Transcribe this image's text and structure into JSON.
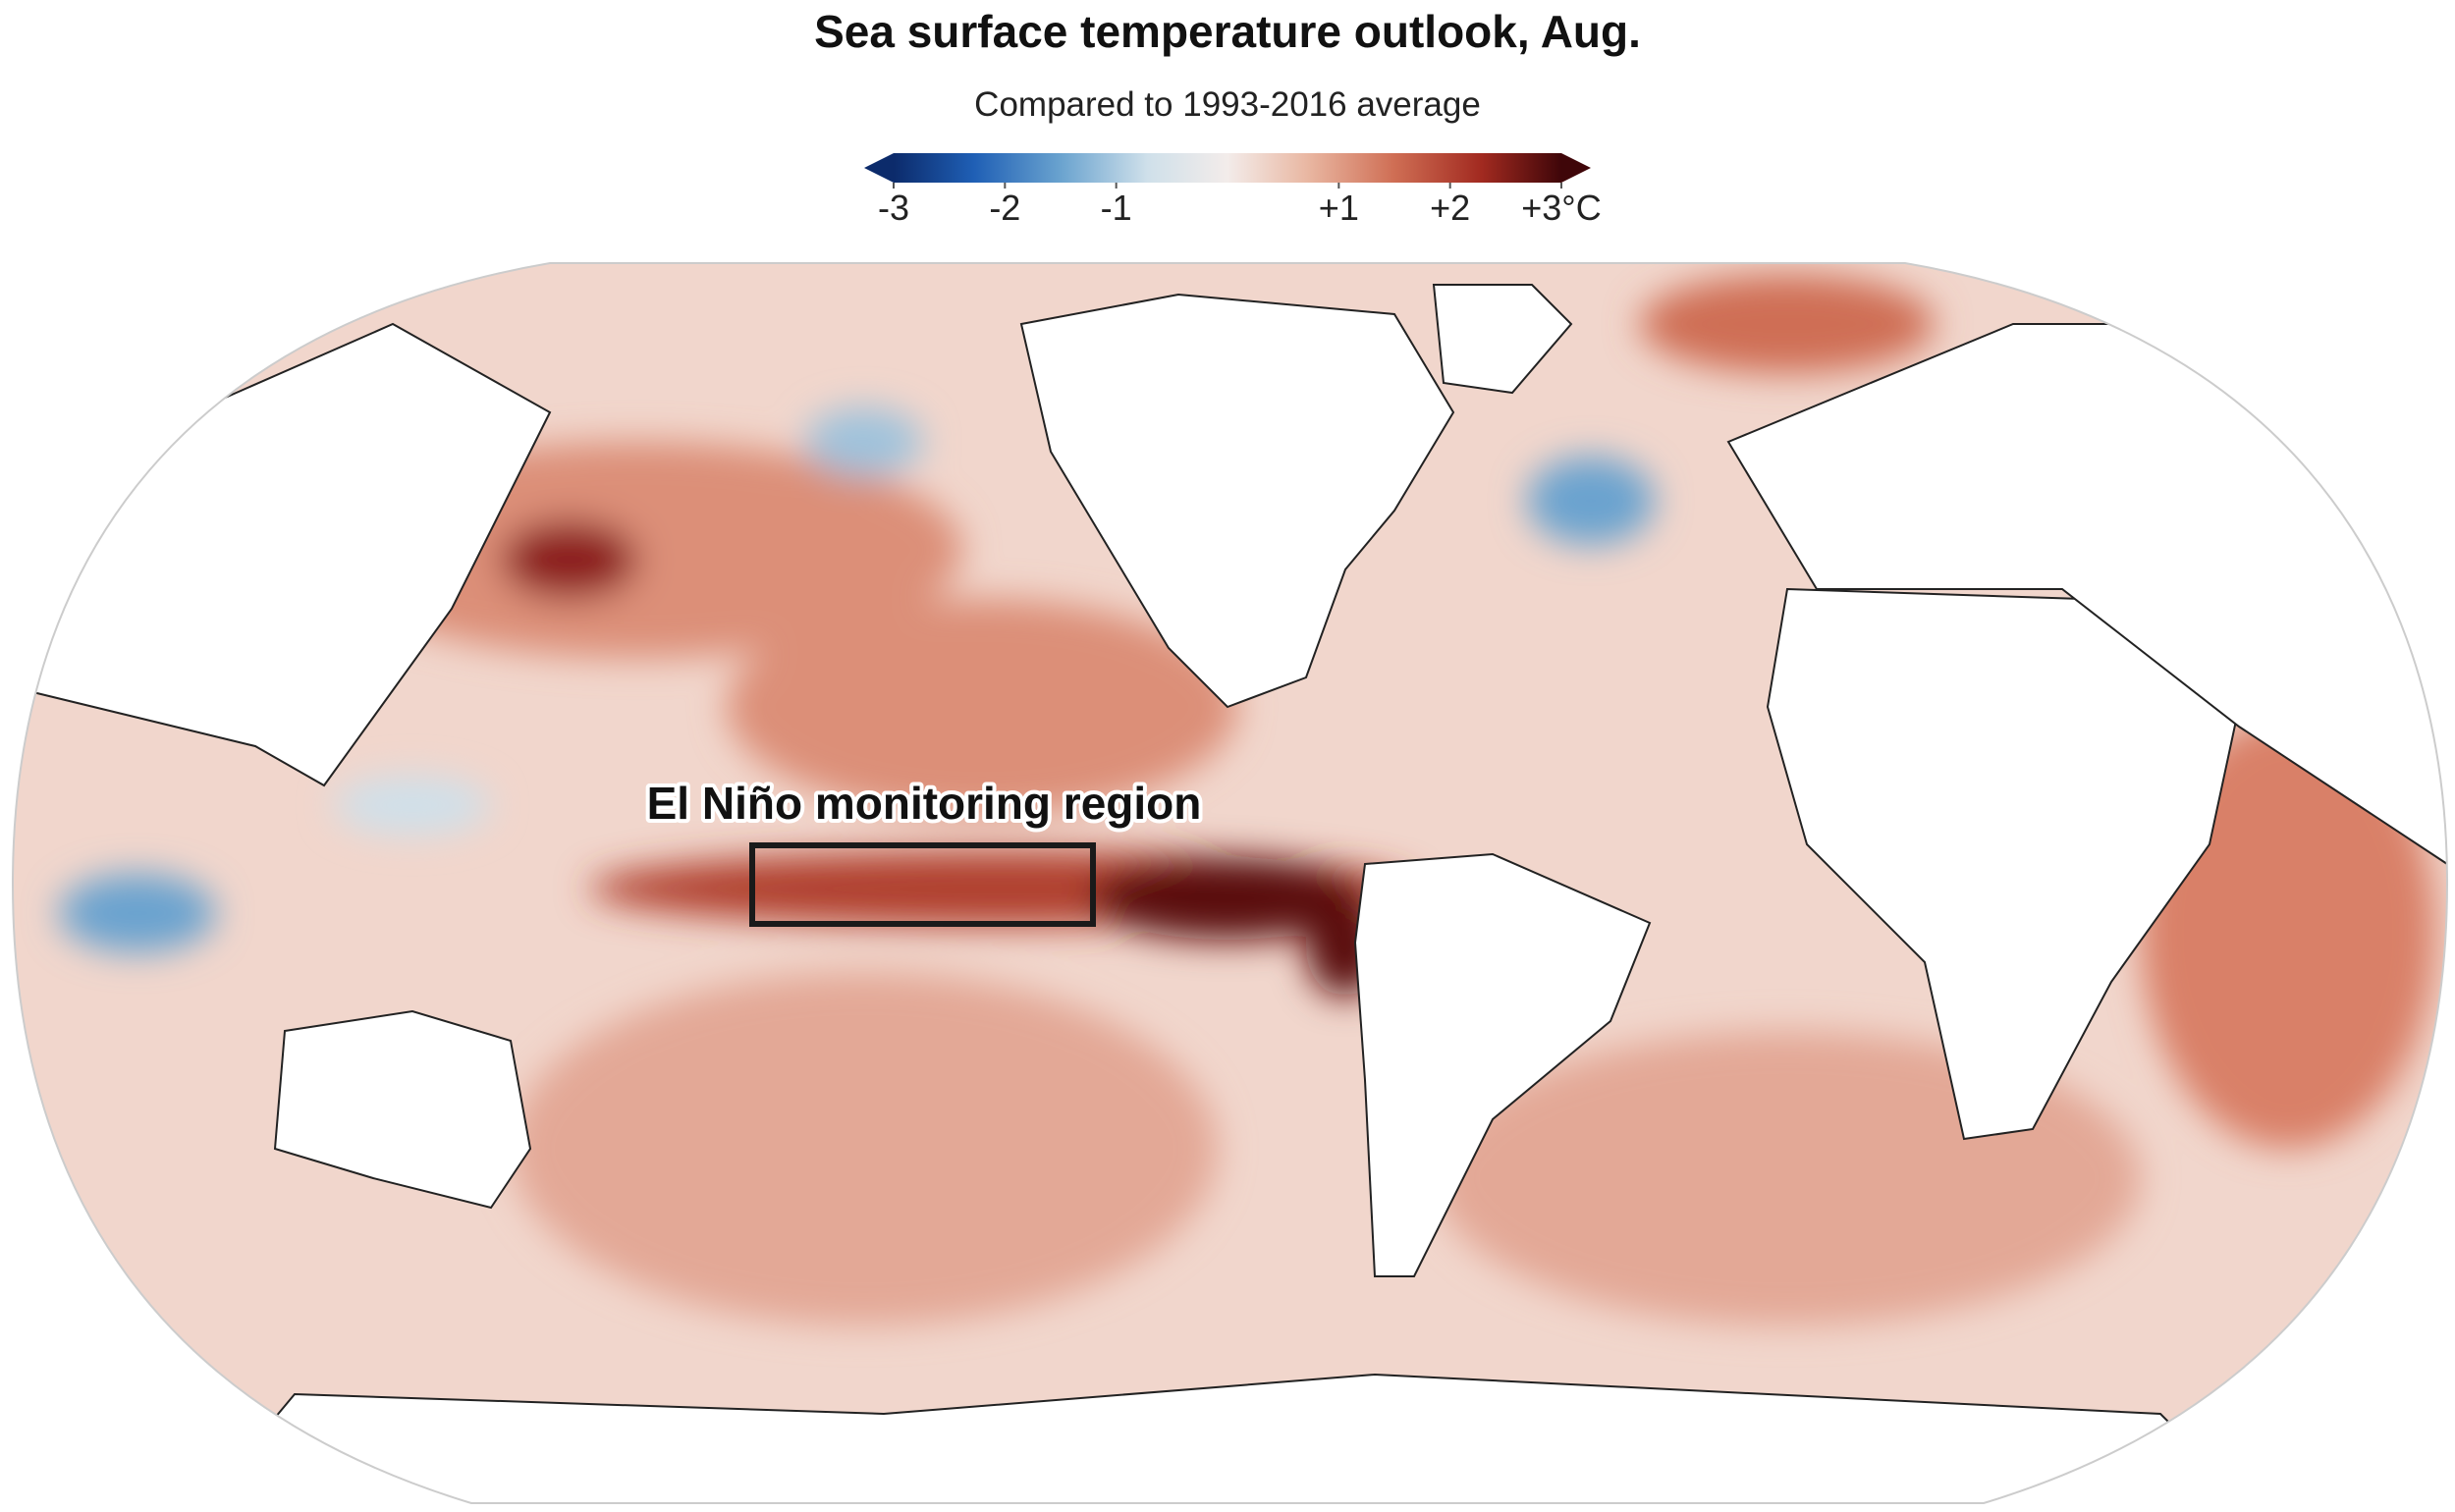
{
  "title": "Sea surface temperature outlook, Aug.",
  "subtitle": "Compared to 1993-2016 average",
  "legend": {
    "range": [
      -3,
      3
    ],
    "ticks": [
      -3,
      -2,
      -1,
      {
        "value": 1,
        "label": "+1"
      },
      {
        "value": 2,
        "label": "+2"
      },
      {
        "value": 3,
        "label": "+3°C"
      }
    ]
  },
  "annotation": "El Niño monitoring region"
}
